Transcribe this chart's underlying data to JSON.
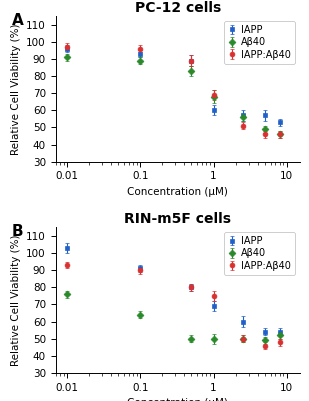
{
  "panel_A": {
    "title": "PC-12 cells",
    "x": [
      0.01,
      0.1,
      0.5,
      1.0,
      2.5,
      5.0,
      8.0
    ],
    "IAPP_y": [
      96,
      93,
      89,
      60,
      57,
      57,
      53
    ],
    "IAPP_err": [
      2,
      2,
      3,
      3,
      3,
      3,
      2
    ],
    "Ab40_y": [
      91,
      89,
      83,
      68,
      56,
      49,
      46
    ],
    "Ab40_err": [
      2,
      2,
      3,
      4,
      2,
      2,
      2
    ],
    "hetero_y": [
      97,
      96,
      89,
      69,
      51,
      46,
      46
    ],
    "hetero_err": [
      2,
      2,
      3,
      3,
      2,
      2,
      2
    ]
  },
  "panel_B": {
    "title": "RIN-m5F cells",
    "x": [
      0.01,
      0.1,
      0.5,
      1.0,
      2.5,
      5.0,
      8.0
    ],
    "IAPP_y": [
      103,
      91,
      80,
      69,
      60,
      54,
      54
    ],
    "IAPP_err": [
      3,
      2,
      2,
      3,
      3,
      2,
      2
    ],
    "Ab40_y": [
      76,
      64,
      50,
      50,
      50,
      49,
      52
    ],
    "Ab40_err": [
      2,
      2,
      2,
      3,
      2,
      2,
      2
    ],
    "hetero_y": [
      93,
      90,
      80,
      75,
      50,
      46,
      48
    ],
    "hetero_err": [
      2,
      2,
      2,
      3,
      2,
      2,
      2
    ]
  },
  "ylabel": "Relative Cell Viability (%)",
  "xlabel": "Concentration (μM)",
  "ylim": [
    30,
    115
  ],
  "yticks": [
    30,
    40,
    50,
    60,
    70,
    80,
    90,
    100,
    110
  ],
  "xlim": [
    0.007,
    15
  ],
  "color_IAPP": "#2060c8",
  "color_Ab40": "#2a8a2a",
  "color_hetero": "#d93030",
  "label_IAPP": "IAPP",
  "label_Ab40": "Aβ40",
  "label_hetero": "IAPP:Aβ40",
  "bg_color": "#ffffff",
  "panel_label_fontsize": 11,
  "title_fontsize": 10,
  "axis_fontsize": 7.5,
  "legend_fontsize": 7
}
